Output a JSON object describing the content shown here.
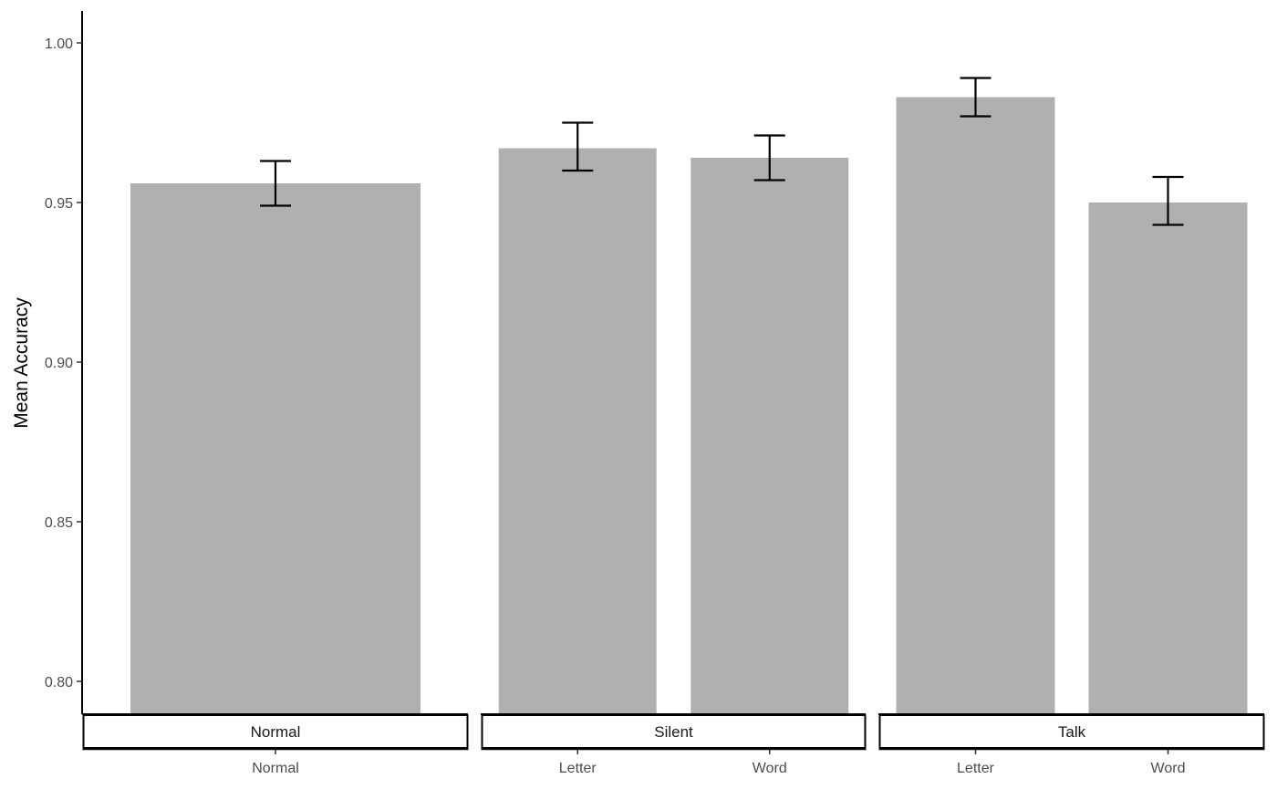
{
  "chart_data": {
    "type": "bar",
    "ylabel": "Mean Accuracy",
    "xlabel": "",
    "ylim": [
      0.79,
      1.01
    ],
    "yticks": [
      0.8,
      0.85,
      0.9,
      0.95,
      1.0
    ],
    "ytick_labels": [
      "0.80",
      "0.85",
      "0.90",
      "0.95",
      "1.00"
    ],
    "grid": false,
    "bar_color": "#b0b0b0",
    "facets": [
      {
        "label": "Normal",
        "bars": [
          {
            "category": "Normal",
            "value": 0.956,
            "err_low": 0.949,
            "err_high": 0.963
          }
        ]
      },
      {
        "label": "Silent",
        "bars": [
          {
            "category": "Letter",
            "value": 0.967,
            "err_low": 0.96,
            "err_high": 0.975
          },
          {
            "category": "Word",
            "value": 0.964,
            "err_low": 0.957,
            "err_high": 0.971
          }
        ]
      },
      {
        "label": "Talk",
        "bars": [
          {
            "category": "Letter",
            "value": 0.983,
            "err_low": 0.977,
            "err_high": 0.989
          },
          {
            "category": "Word",
            "value": 0.95,
            "err_low": 0.943,
            "err_high": 0.958
          }
        ]
      }
    ]
  }
}
